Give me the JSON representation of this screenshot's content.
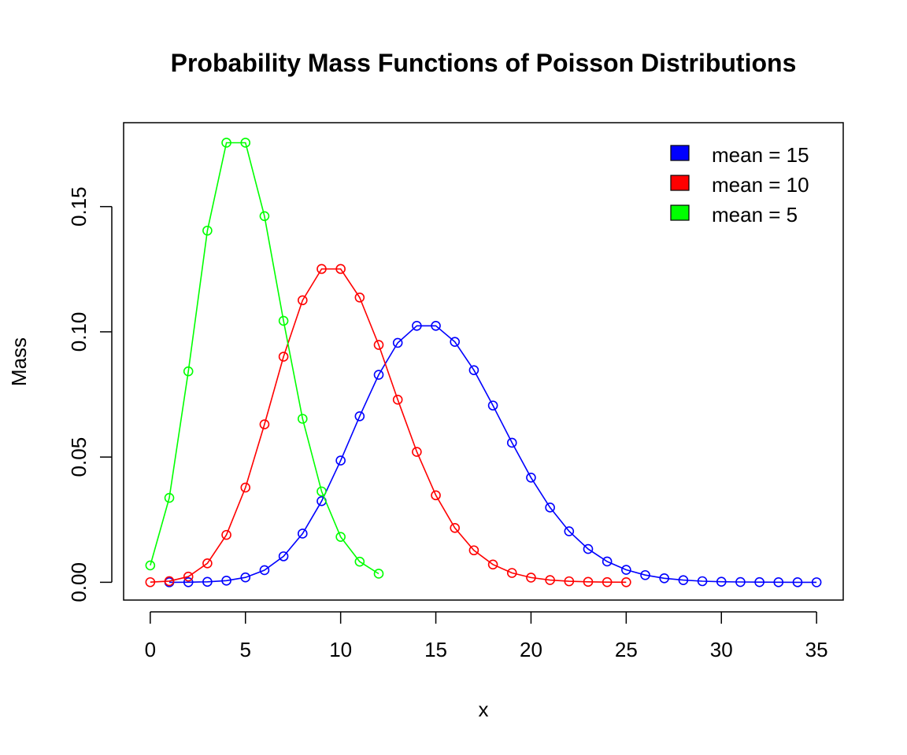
{
  "chart_data": {
    "type": "line",
    "title": "Probability Mass Functions of Poisson Distributions",
    "xlabel": "x",
    "ylabel": "Mass",
    "xlim": [
      -1.4,
      36.4
    ],
    "ylim": [
      -0.0071,
      0.1835
    ],
    "x_ticks": [
      0,
      5,
      10,
      15,
      20,
      25,
      30,
      35
    ],
    "x_tick_labels": [
      "0",
      "5",
      "10",
      "15",
      "20",
      "25",
      "30",
      "35"
    ],
    "y_ticks": [
      0.0,
      0.05,
      0.1,
      0.15
    ],
    "y_tick_labels": [
      "0.00",
      "0.05",
      "0.10",
      "0.15"
    ],
    "legend_position": "top-right",
    "series": [
      {
        "name": "mean = 15",
        "color": "#0000FF",
        "x": [
          1,
          2,
          3,
          4,
          5,
          6,
          7,
          8,
          9,
          10,
          11,
          12,
          13,
          14,
          15,
          16,
          17,
          18,
          19,
          20,
          21,
          22,
          23,
          24,
          25,
          26,
          27,
          28,
          29,
          30,
          31,
          32,
          33,
          34,
          35
        ],
        "values": [
          4.6e-06,
          3.44e-05,
          0.000172,
          0.000645,
          0.001936,
          0.004839,
          0.01037,
          0.01944,
          0.0324,
          0.04861,
          0.06628,
          0.08285,
          0.0956,
          0.1024,
          0.1024,
          0.096,
          0.0847,
          0.07058,
          0.05572,
          0.04179,
          0.02985,
          0.02036,
          0.01328,
          0.0083,
          0.00498,
          0.00287,
          0.0016,
          0.00086,
          0.00044,
          0.00022,
          0.00011,
          5e-05,
          2e-05,
          1e-05,
          5e-06
        ]
      },
      {
        "name": "mean = 10",
        "color": "#FF0000",
        "x": [
          0,
          1,
          2,
          3,
          4,
          5,
          6,
          7,
          8,
          9,
          10,
          11,
          12,
          13,
          14,
          15,
          16,
          17,
          18,
          19,
          20,
          21,
          22,
          23,
          24,
          25
        ],
        "values": [
          4.54e-05,
          0.000454,
          0.00227,
          0.00757,
          0.01892,
          0.03783,
          0.06306,
          0.09008,
          0.1126,
          0.1251,
          0.1251,
          0.1137,
          0.09478,
          0.07291,
          0.05208,
          0.03472,
          0.0217,
          0.01276,
          0.00709,
          0.00373,
          0.00187,
          0.00089,
          0.0004,
          0.00018,
          7e-05,
          3e-05
        ]
      },
      {
        "name": "mean = 5",
        "color": "#00FF00",
        "x": [
          0,
          1,
          2,
          3,
          4,
          5,
          6,
          7,
          8,
          9,
          10,
          11,
          12
        ],
        "values": [
          0.006738,
          0.03369,
          0.08422,
          0.1404,
          0.1755,
          0.1755,
          0.1462,
          0.1044,
          0.06528,
          0.03627,
          0.01813,
          0.00824,
          0.00343
        ]
      }
    ]
  }
}
